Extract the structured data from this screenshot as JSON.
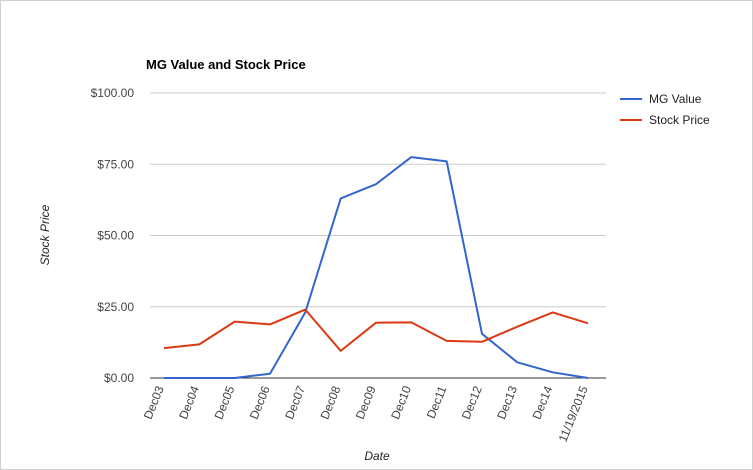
{
  "chart_data": {
    "type": "line",
    "title": "MG Value and Stock Price",
    "xlabel": "Date",
    "ylabel": "Stock Price",
    "categories": [
      "Dec03",
      "Dec04",
      "Dec05",
      "Dec06",
      "Dec07",
      "Dec08",
      "Dec09",
      "Dec10",
      "Dec11",
      "Dec12",
      "Dec13",
      "Dec14",
      "11/19/2015"
    ],
    "series": [
      {
        "name": "MG Value",
        "color": "#3366cc",
        "values": [
          0,
          0,
          0,
          1.5,
          23,
          63,
          68,
          77.5,
          76,
          15.5,
          5.5,
          2,
          0
        ]
      },
      {
        "name": "Stock Price",
        "color": "#dc3912",
        "values": [
          10.5,
          11.8,
          19.8,
          18.8,
          24,
          9.5,
          19.4,
          19.5,
          13,
          12.7,
          18,
          23,
          19.2
        ]
      }
    ],
    "ylim": [
      0,
      100
    ],
    "yticks": [
      0,
      25,
      50,
      75,
      100
    ],
    "ytick_labels": [
      "$0.00",
      "$25.00",
      "$50.00",
      "$75.00",
      "$100.00"
    ],
    "grid": true,
    "legend": "right"
  }
}
